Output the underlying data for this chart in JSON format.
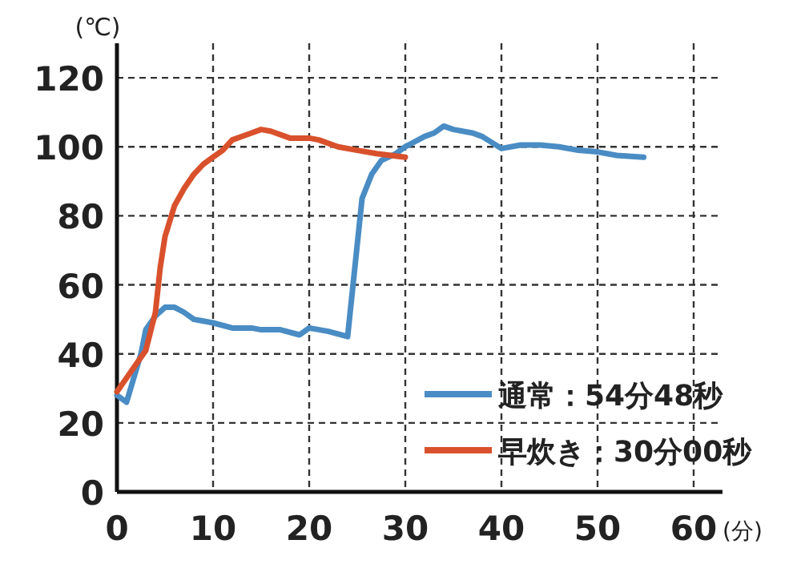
{
  "chart_data": {
    "type": "line",
    "xlabel": "(分)",
    "ylabel": "(℃)",
    "xlim": [
      0,
      63
    ],
    "ylim": [
      0,
      130
    ],
    "xticks": [
      0,
      10,
      20,
      30,
      40,
      50,
      60
    ],
    "yticks": [
      0,
      20,
      40,
      60,
      80,
      100,
      120
    ],
    "grid": true,
    "legend": "bottom right",
    "series": [
      {
        "name": "通常：54分48秒",
        "color": "#4a8cc4",
        "x": [
          0,
          1,
          2.5,
          3,
          4,
          5,
          6,
          7,
          8,
          10,
          12,
          14,
          15,
          17,
          19,
          20,
          22,
          24,
          25.5,
          26.5,
          27.5,
          29,
          30,
          32,
          33,
          34,
          35,
          37,
          38,
          40,
          42,
          44,
          46,
          48,
          50,
          52,
          54.8
        ],
        "values": [
          28,
          26,
          40,
          47,
          51,
          53.5,
          53.5,
          52,
          50,
          49,
          47.5,
          47.5,
          47,
          47,
          45.5,
          47.5,
          46.5,
          45,
          85,
          92,
          96,
          98,
          100,
          103,
          104,
          106,
          105,
          104,
          103,
          99.5,
          100.5,
          100.5,
          100,
          99,
          98.5,
          97.5,
          97
        ]
      },
      {
        "name": "早炊き：30分00秒",
        "color": "#d9512c",
        "x": [
          0,
          2,
          3,
          4,
          4.5,
          5,
          6,
          7,
          8,
          9,
          10,
          11,
          12,
          14,
          15,
          16,
          18,
          20,
          21,
          23,
          25,
          27,
          30
        ],
        "values": [
          29,
          37,
          41,
          52,
          65,
          74,
          83,
          88,
          92,
          95,
          97,
          99,
          102,
          104,
          105,
          104.5,
          102.5,
          102.5,
          102,
          100,
          99,
          98,
          97
        ]
      }
    ]
  }
}
